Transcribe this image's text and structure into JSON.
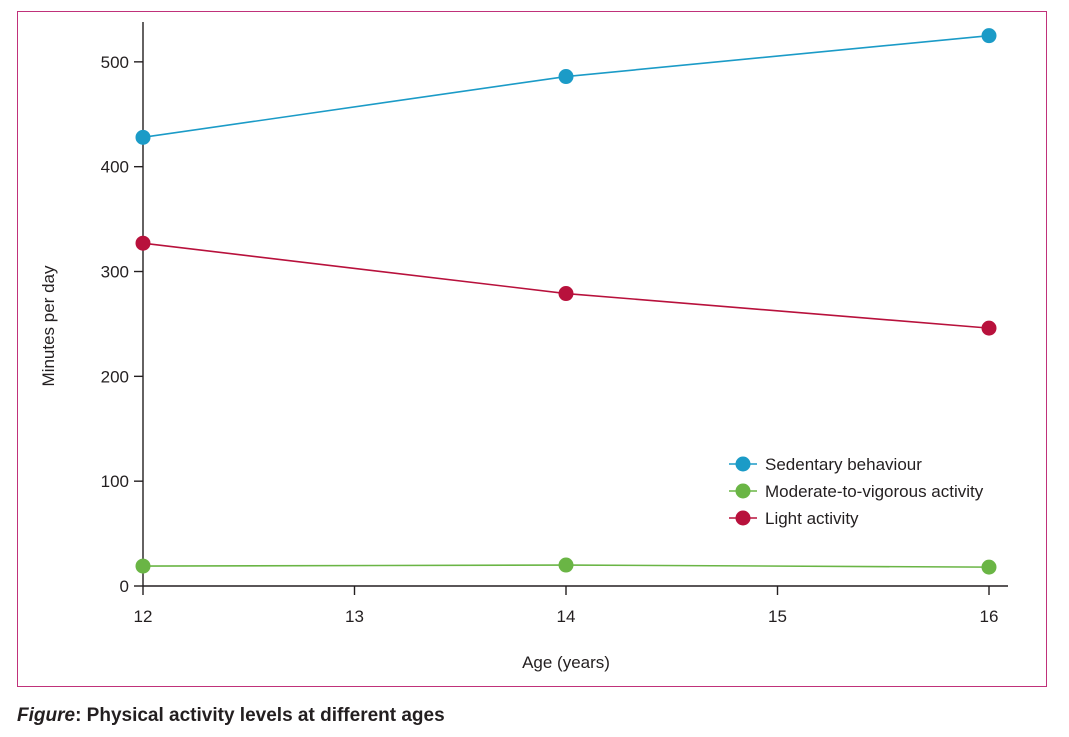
{
  "caption": {
    "label": "Figure",
    "separator": ":",
    "text": " Physical activity levels at different ages"
  },
  "chart_data": {
    "type": "line",
    "xlabel": "Age (years)",
    "ylabel": "Minutes per day",
    "xlim": [
      12,
      16
    ],
    "ylim": [
      0,
      530
    ],
    "xticks": [
      12,
      13,
      14,
      15,
      16
    ],
    "yticks": [
      0,
      100,
      200,
      300,
      400,
      500
    ],
    "grid": false,
    "legend_position": "right",
    "x": [
      12,
      14,
      16
    ],
    "series": [
      {
        "name": "Sedentary behaviour",
        "color": "#1b9bc7",
        "values": [
          428,
          486,
          525
        ]
      },
      {
        "name": "Moderate-to-vigorous activity",
        "color": "#6ab545",
        "values": [
          19,
          20,
          18
        ]
      },
      {
        "name": "Light activity",
        "color": "#b8113c",
        "values": [
          327,
          279,
          246
        ]
      }
    ]
  }
}
